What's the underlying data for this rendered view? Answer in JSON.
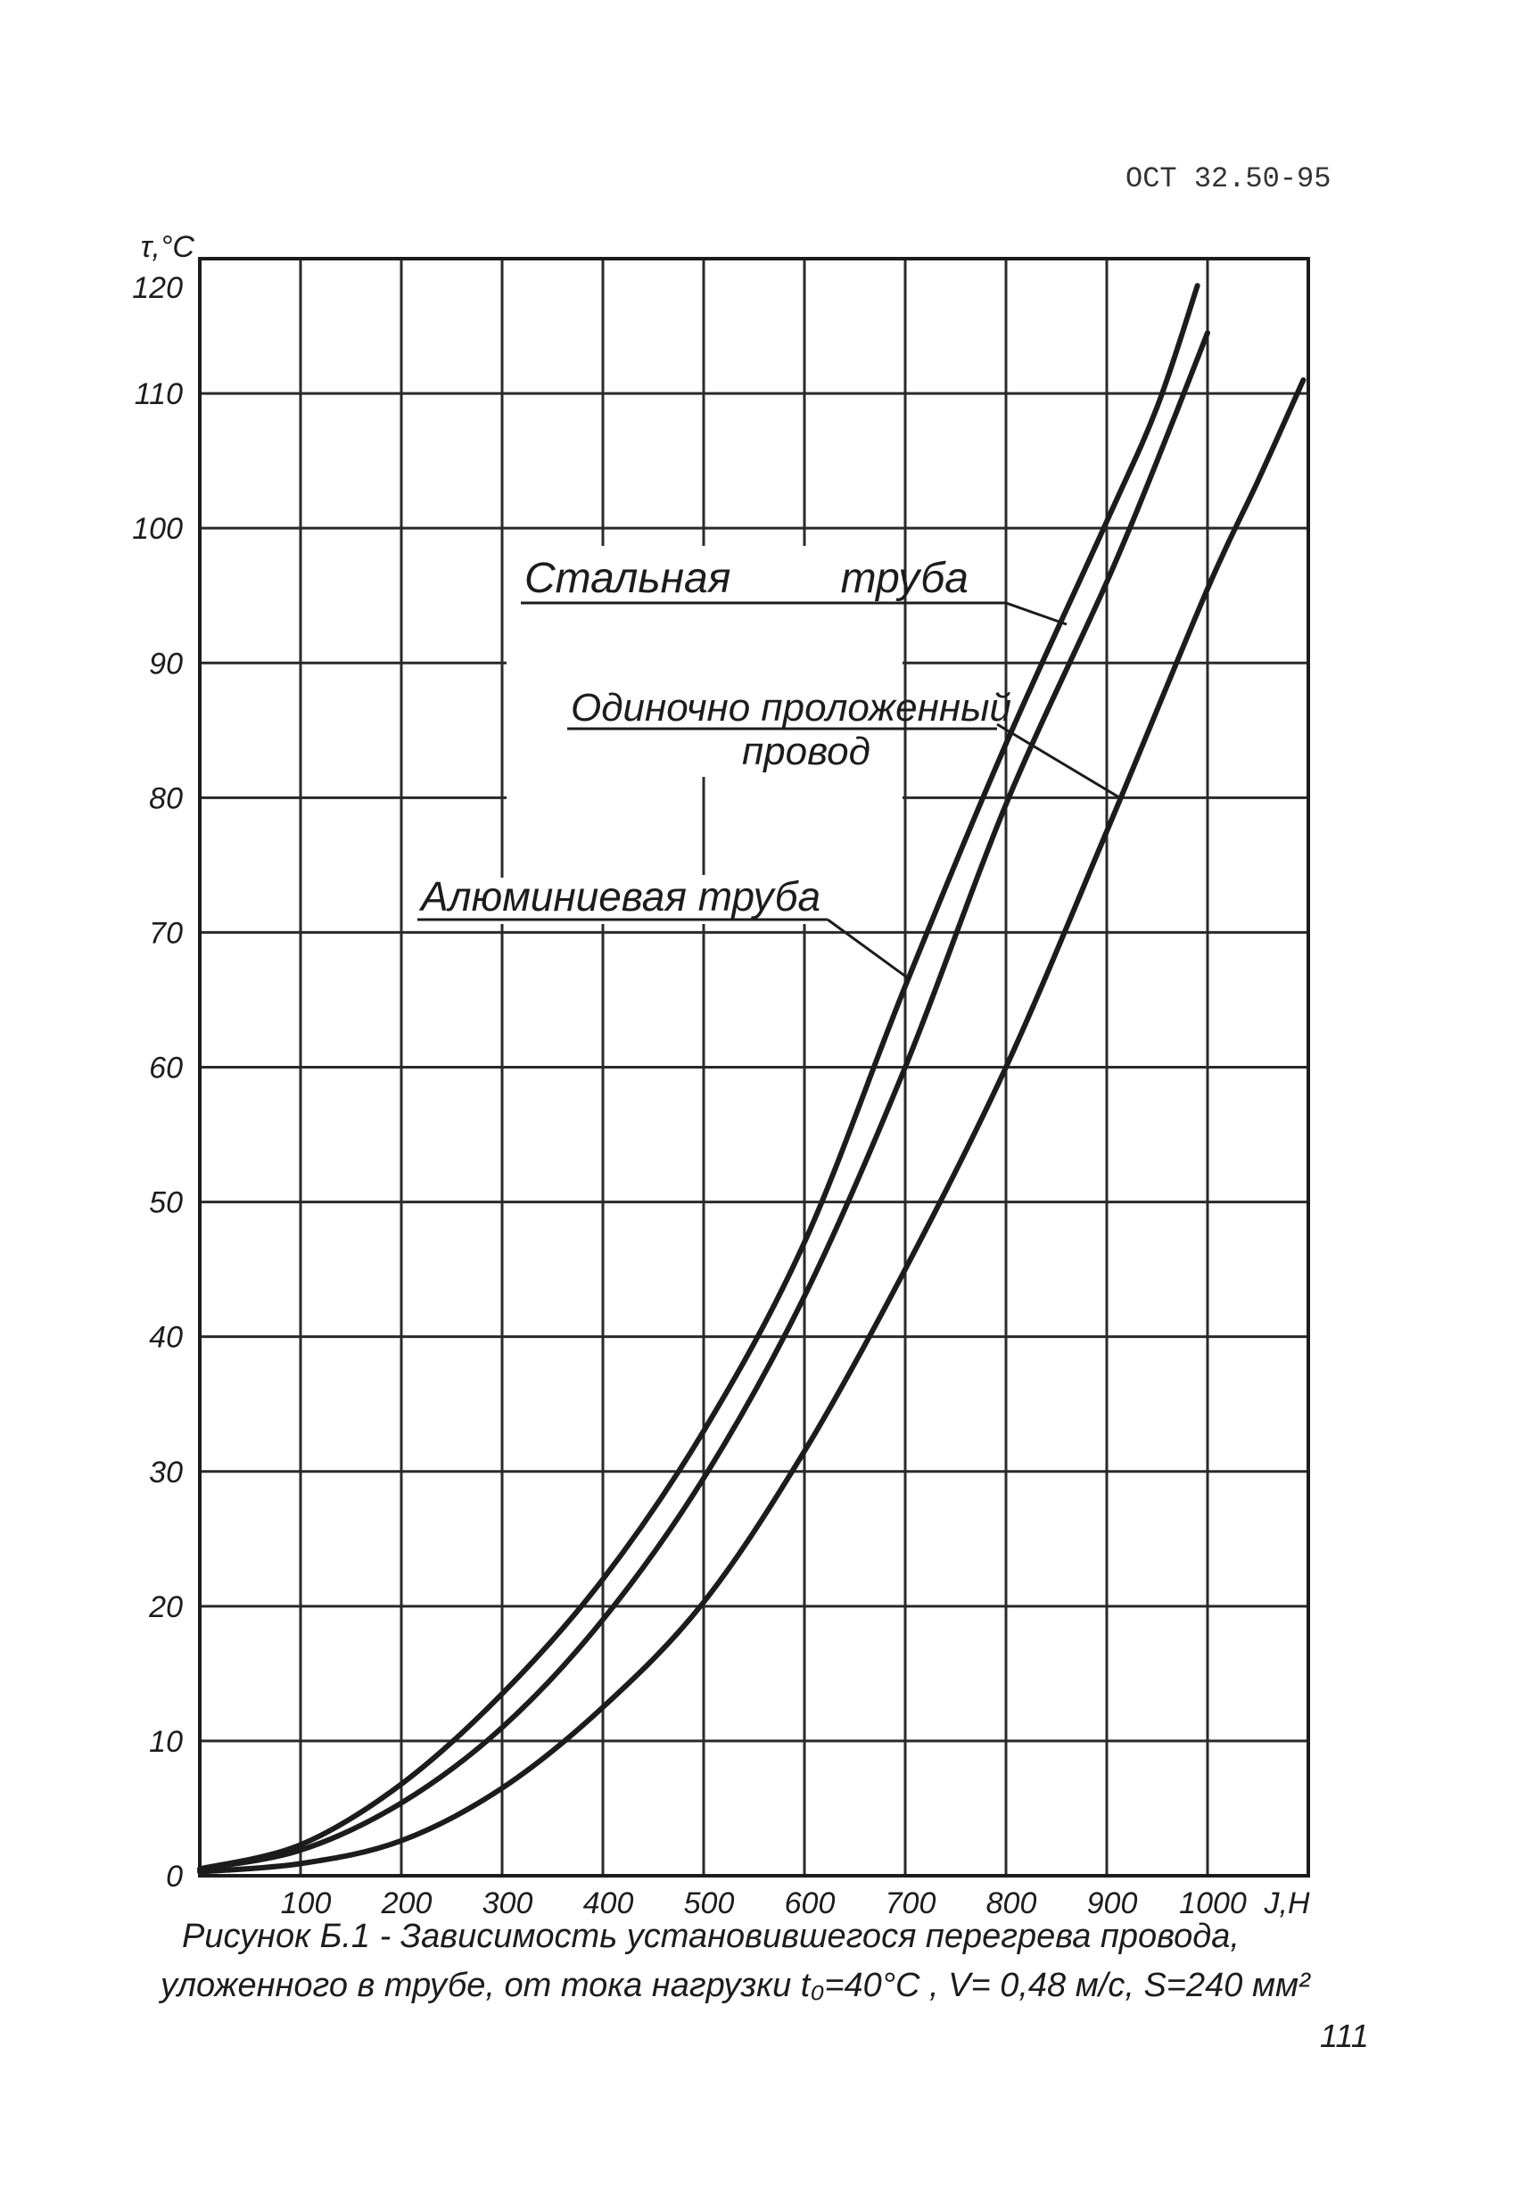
{
  "header": {
    "doc_code": "ОСТ 32.50-95"
  },
  "caption": {
    "line1": "Рисунок Б.1 - Зависимость установившегося перегрева провода,",
    "line2": "уложенного в трубе, от тока нагрузки t₀=40°С , V= 0,48 м/с, S=240 мм²"
  },
  "page_number": "111",
  "colors": {
    "ink": "#1c1c1c",
    "paper": "#ffffff"
  },
  "chart_data": {
    "type": "line",
    "xlabel": "J,H",
    "ylabel": "τ,°C",
    "xlim": [
      0,
      1100
    ],
    "ylim": [
      0,
      120
    ],
    "grid": true,
    "x_ticks": [
      100,
      200,
      300,
      400,
      500,
      600,
      700,
      800,
      900,
      1000
    ],
    "y_ticks": [
      0,
      10,
      20,
      30,
      40,
      50,
      60,
      70,
      80,
      90,
      100,
      110,
      120
    ],
    "series": [
      {
        "label_lines": [
          "Стальная труба"
        ],
        "x": [
          0,
          100,
          200,
          300,
          400,
          500,
          600,
          700,
          800,
          900,
          950,
          990
        ],
        "y": [
          0.5,
          2.3,
          6.8,
          13.5,
          22,
          33,
          47,
          66,
          84,
          100.5,
          109,
          118
        ]
      },
      {
        "label_lines": [
          "Алюминиевая труба"
        ],
        "x": [
          0,
          100,
          200,
          300,
          400,
          500,
          600,
          700,
          800,
          900,
          950,
          1000
        ],
        "y": [
          0.5,
          1.9,
          5.4,
          11,
          19,
          29.5,
          43,
          60,
          79.5,
          96,
          105,
          114.5
        ]
      },
      {
        "label_lines": [
          "Одиночно проложенный",
          "провод"
        ],
        "x": [
          0,
          100,
          200,
          300,
          400,
          500,
          600,
          700,
          800,
          900,
          1000,
          1050,
          1095
        ],
        "y": [
          0.3,
          0.9,
          2.6,
          6.5,
          12.5,
          20.3,
          31.5,
          45,
          60,
          77.5,
          95.5,
          103.5,
          111
        ]
      }
    ]
  }
}
